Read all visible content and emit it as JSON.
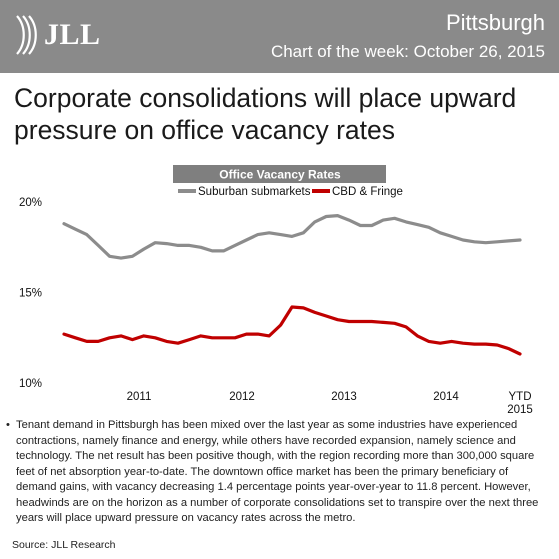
{
  "header": {
    "brand": "JLL",
    "city": "Pittsburgh",
    "subtitle": "Chart of the week: October 26, 2015"
  },
  "headline": "Corporate consolidations will place upward pressure on office vacancy rates",
  "chart_data": {
    "type": "line",
    "title": "Office Vacancy Rates",
    "legend_position": "top",
    "ylim": [
      10,
      20
    ],
    "yticks": [
      "20%",
      "15%",
      "10%"
    ],
    "xticks": [
      "2011",
      "2012",
      "2013",
      "2014",
      "YTD 2015"
    ],
    "grid": false,
    "x": [
      0,
      0.5,
      1,
      1.5,
      2,
      2.5,
      3,
      3.5,
      4,
      4.5,
      5,
      5.5,
      6,
      6.5,
      7,
      7.5,
      8,
      8.5,
      9,
      9.5,
      10,
      10.5,
      11,
      11.5,
      12,
      12.5,
      13,
      13.5,
      14,
      14.5,
      15,
      15.5,
      16,
      16.5,
      17,
      17.5,
      18,
      18.5,
      19,
      19.5,
      20
    ],
    "series": [
      {
        "name": "Suburban submarkets",
        "color": "#8c8c8c",
        "values": [
          18.8,
          18.5,
          18.2,
          17.6,
          17.0,
          16.9,
          17.0,
          17.4,
          17.75,
          17.7,
          17.6,
          17.6,
          17.5,
          17.3,
          17.3,
          17.6,
          17.9,
          18.2,
          18.3,
          18.2,
          18.1,
          18.3,
          18.9,
          19.2,
          19.25,
          19.0,
          18.7,
          18.7,
          19.0,
          19.1,
          18.9,
          18.75,
          18.6,
          18.3,
          18.1,
          17.9,
          17.8,
          17.75,
          17.8,
          17.85,
          17.9
        ]
      },
      {
        "name": "CBD & Fringe",
        "color": "#c00000",
        "values": [
          12.7,
          12.5,
          12.3,
          12.3,
          12.5,
          12.6,
          12.4,
          12.6,
          12.5,
          12.3,
          12.2,
          12.4,
          12.6,
          12.5,
          12.5,
          12.5,
          12.7,
          12.7,
          12.6,
          13.2,
          14.2,
          14.15,
          13.9,
          13.7,
          13.5,
          13.4,
          13.4,
          13.4,
          13.35,
          13.3,
          13.1,
          12.6,
          12.3,
          12.2,
          12.3,
          12.2,
          12.15,
          12.15,
          12.1,
          11.9,
          11.6
        ]
      }
    ]
  },
  "body_text": "Tenant demand in Pittsburgh has been mixed over the last year as some industries have experienced contractions, namely finance and energy, while others have recorded expansion, namely science and technology. The net result has been positive though, with the region recording more than 300,000 square feet of net absorption year-to-date. The downtown office market has been the primary beneficiary of demand gains, with vacancy decreasing 1.4 percentage points year-over-year to 11.8 percent. However, headwinds are on the horizon as a number of corporate consolidations set to transpire over the next three years will place upward pressure on vacancy rates across the metro.",
  "bullet": "•",
  "source": "Source: JLL Research"
}
